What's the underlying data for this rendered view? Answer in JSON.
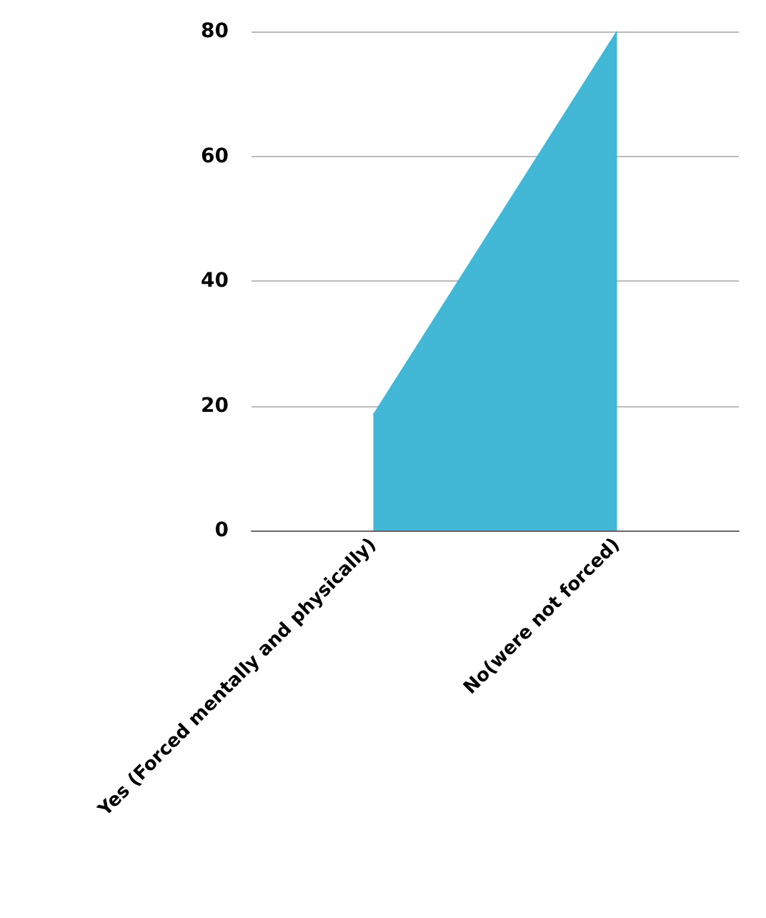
{
  "chart_data": {
    "type": "area",
    "categories": [
      "Yes (Forced mentally and physically)",
      "No(were not forced)"
    ],
    "series": [
      {
        "color": "#42b7d6",
        "values": [
          18.5,
          80
        ]
      }
    ],
    "ylim": [
      0,
      80
    ],
    "yticks": [
      0,
      20,
      40,
      60,
      80
    ],
    "grid": "y",
    "marker": "none"
  }
}
